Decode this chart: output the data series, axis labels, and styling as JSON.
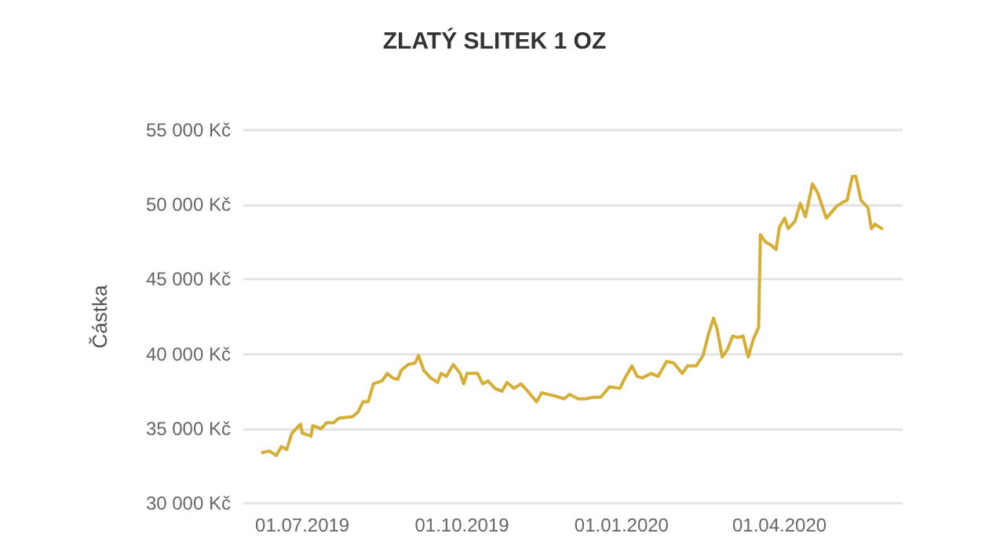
{
  "chart_data": {
    "type": "line",
    "title": "ZLATÝ SLITEK 1 OZ",
    "ylabel": "Částka",
    "x": [
      "2019-06-08",
      "2019-06-12",
      "2019-06-16",
      "2019-06-19",
      "2019-06-22",
      "2019-06-25",
      "2019-06-30",
      "2019-07-01",
      "2019-07-06",
      "2019-07-07",
      "2019-07-12",
      "2019-07-15",
      "2019-07-19",
      "2019-07-22",
      "2019-07-30",
      "2019-08-02",
      "2019-08-05",
      "2019-08-08",
      "2019-08-11",
      "2019-08-16",
      "2019-08-19",
      "2019-08-22",
      "2019-08-25",
      "2019-08-27",
      "2019-08-31",
      "2019-09-04",
      "2019-09-06",
      "2019-09-09",
      "2019-09-13",
      "2019-09-17",
      "2019-09-19",
      "2019-09-22",
      "2019-09-26",
      "2019-09-30",
      "2019-10-02",
      "2019-10-04",
      "2019-10-10",
      "2019-10-13",
      "2019-10-16",
      "2019-10-20",
      "2019-10-24",
      "2019-10-27",
      "2019-10-31",
      "2019-11-04",
      "2019-11-08",
      "2019-11-13",
      "2019-11-16",
      "2019-11-23",
      "2019-11-29",
      "2019-12-02",
      "2019-12-07",
      "2019-12-11",
      "2019-12-16",
      "2019-12-20",
      "2019-12-25",
      "2019-12-31",
      "2020-01-03",
      "2020-01-07",
      "2020-01-10",
      "2020-01-13",
      "2020-01-18",
      "2020-01-22",
      "2020-01-27",
      "2020-01-31",
      "2020-02-05",
      "2020-02-08",
      "2020-02-13",
      "2020-02-17",
      "2020-02-20",
      "2020-02-23",
      "2020-02-25",
      "2020-02-28",
      "2020-03-02",
      "2020-03-05",
      "2020-03-08",
      "2020-03-11",
      "2020-03-14",
      "2020-03-17",
      "2020-03-20",
      "2020-03-21",
      "2020-03-24",
      "2020-03-27",
      "2020-03-30",
      "2020-04-01",
      "2020-04-04",
      "2020-04-06",
      "2020-04-10",
      "2020-04-13",
      "2020-04-16",
      "2020-04-20",
      "2020-04-23",
      "2020-04-28",
      "2020-05-04",
      "2020-05-08",
      "2020-05-10",
      "2020-05-13",
      "2020-05-15",
      "2020-05-18",
      "2020-05-22",
      "2020-05-24",
      "2020-05-26",
      "2020-05-30"
    ],
    "series": [
      {
        "color": "#d4ae35",
        "values": [
          33400,
          33500,
          33200,
          33800,
          33600,
          34700,
          35300,
          34700,
          34500,
          35200,
          35000,
          35400,
          35400,
          35700,
          35800,
          36100,
          36800,
          36800,
          38000,
          38200,
          38700,
          38400,
          38300,
          38900,
          39300,
          39400,
          39900,
          38900,
          38400,
          38100,
          38700,
          38500,
          39300,
          38700,
          38000,
          38700,
          38700,
          38000,
          38200,
          37700,
          37500,
          38100,
          37700,
          38000,
          37500,
          36800,
          37400,
          37200,
          37000,
          37300,
          37000,
          37000,
          37100,
          37100,
          37800,
          37700,
          38400,
          39200,
          38500,
          38400,
          38700,
          38500,
          39500,
          39400,
          38700,
          39200,
          39200,
          39900,
          41300,
          42400,
          41700,
          39800,
          40300,
          41200,
          41100,
          41200,
          39800,
          41000,
          41800,
          48000,
          47500,
          47300,
          47000,
          48500,
          49100,
          48400,
          48900,
          50100,
          49200,
          51400,
          50800,
          49100,
          49900,
          50200,
          50300,
          51900,
          51900,
          50300,
          49800,
          48400,
          48700,
          48400
        ]
      }
    ],
    "xlim": [
      "2019-05-28",
      "2020-06-11"
    ],
    "xticks": [
      {
        "value": "2019-07-01",
        "label": "01.07.2019"
      },
      {
        "value": "2019-10-01",
        "label": "01.10.2019"
      },
      {
        "value": "2020-01-01",
        "label": "01.01.2020"
      },
      {
        "value": "2020-04-01",
        "label": "01.04.2020"
      }
    ],
    "ylim": [
      30000,
      55000
    ],
    "yticks": [
      {
        "value": 30000,
        "label": "30 000 Kč"
      },
      {
        "value": 35000,
        "label": "35 000 Kč"
      },
      {
        "value": 40000,
        "label": "40 000 Kč"
      },
      {
        "value": 45000,
        "label": "45 000 Kč"
      },
      {
        "value": 50000,
        "label": "50 000 Kč"
      },
      {
        "value": 55000,
        "label": "55 000 Kč"
      }
    ],
    "grid": "y",
    "marker": "none",
    "line_style": "solid"
  }
}
